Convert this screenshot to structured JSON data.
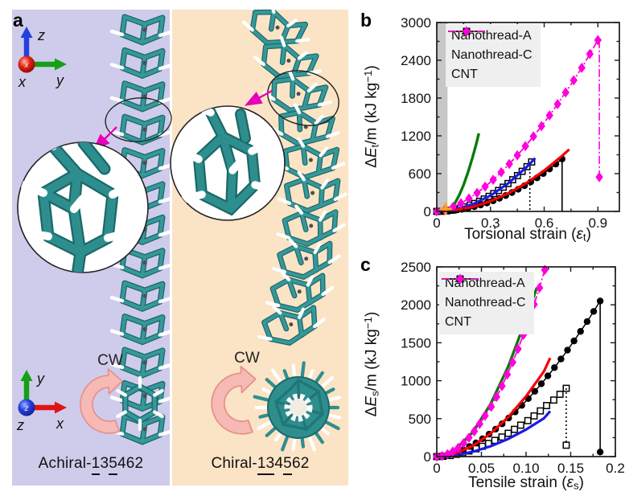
{
  "figure": {
    "panel_a": {
      "label": "a",
      "cw": "CW",
      "left_bg": "#CFCBEB",
      "right_bg": "#FBE3C5",
      "molecule_color": "#2E8E8E",
      "hydrogen_color": "#FFFFFF",
      "axes_top": {
        "up": "z",
        "right": "y",
        "out": "x"
      },
      "axes_bottom": {
        "up": "y",
        "right": "x",
        "out": "z"
      },
      "name_left": {
        "prefix": "Achiral-",
        "u1": "1",
        "m": "3",
        "u2": "5",
        "rest": "462"
      },
      "name_right": {
        "prefix": "Chiral-",
        "u1": "13",
        "m": "4",
        "u2": "5",
        "rest": "62"
      }
    },
    "panel_b": {
      "label": "b"
    },
    "panel_c": {
      "label": "c"
    }
  },
  "chart_data": [
    {
      "type": "line",
      "panel": "b",
      "xlabel_parts": {
        "pre": "Torsional strain (",
        "sym": "ε",
        "sub": "t",
        "post": ")"
      },
      "ylabel_parts": {
        "delta": "Δ",
        "E": "E",
        "sub": "t",
        "mid": "/m (kJ kg",
        "sup": "−1",
        "post": ")"
      },
      "xlim": [
        0,
        1.02
      ],
      "ylim": [
        0,
        3000
      ],
      "xticks": {
        "values": [
          0,
          0.3,
          0.6,
          0.9
        ],
        "labels": [
          "0",
          "0.3",
          "0.6",
          "0.9"
        ]
      },
      "xminor": [
        0.15,
        0.45,
        0.75
      ],
      "yticks": {
        "values": [
          0,
          600,
          1200,
          1800,
          2400,
          3000
        ],
        "labels": [
          "0",
          "600",
          "1200",
          "1800",
          "2400",
          "3000"
        ]
      },
      "yminor": [
        300,
        900,
        1500,
        2100,
        2700
      ],
      "shaded_band_x": [
        0,
        0.06
      ],
      "band_color": "#C7C7C7",
      "legend": [
        {
          "label": "Nanothread-A",
          "color": "#000000",
          "dash": "solid",
          "marker": "circle"
        },
        {
          "label": "Nanothread-C",
          "color": "#000000",
          "dash": "dot",
          "marker": "square"
        },
        {
          "label": "CNT",
          "color": "#FF00DC",
          "dash": "dashdot",
          "marker": "diamond"
        }
      ],
      "series": [
        {
          "name": "Nanothread-C",
          "color": "#000000",
          "dash": "dot",
          "marker": "square",
          "width": 1.3,
          "points": [
            [
              0,
              0
            ],
            [
              0.027,
              2
            ],
            [
              0.053,
              8
            ],
            [
              0.08,
              18
            ],
            [
              0.106,
              31
            ],
            [
              0.133,
              49
            ],
            [
              0.159,
              71
            ],
            [
              0.186,
              97
            ],
            [
              0.212,
              126
            ],
            [
              0.239,
              160
            ],
            [
              0.265,
              197
            ],
            [
              0.292,
              239
            ],
            [
              0.318,
              283
            ],
            [
              0.345,
              333
            ],
            [
              0.371,
              385
            ],
            [
              0.398,
              443
            ],
            [
              0.424,
              503
            ],
            [
              0.451,
              569
            ],
            [
              0.477,
              637
            ],
            [
              0.504,
              711
            ],
            [
              0.53,
              786
            ]
          ]
        },
        {
          "name": "Nanothread-A",
          "color": "#000000",
          "dash": "solid",
          "marker": "circle",
          "width": 1.5,
          "points": [
            [
              0,
              0
            ],
            [
              0.035,
              2
            ],
            [
              0.07,
              8
            ],
            [
              0.105,
              19
            ],
            [
              0.14,
              33
            ],
            [
              0.175,
              52
            ],
            [
              0.21,
              75
            ],
            [
              0.245,
              102
            ],
            [
              0.28,
              133
            ],
            [
              0.315,
              169
            ],
            [
              0.35,
              208
            ],
            [
              0.385,
              252
            ],
            [
              0.42,
              300
            ],
            [
              0.455,
              352
            ],
            [
              0.49,
              408
            ],
            [
              0.525,
              469
            ],
            [
              0.56,
              533
            ],
            [
              0.595,
              602
            ],
            [
              0.63,
              675
            ],
            [
              0.665,
              752
            ],
            [
              0.7,
              833
            ]
          ]
        },
        {
          "name": "fit-C-blue",
          "color": "#1A1AE6",
          "dash": "solid",
          "marker": null,
          "width": 3.2,
          "points": [
            [
              0,
              0
            ],
            [
              0.1,
              28
            ],
            [
              0.2,
              112
            ],
            [
              0.3,
              252
            ],
            [
              0.4,
              448
            ],
            [
              0.5,
              700
            ],
            [
              0.55,
              847
            ]
          ]
        },
        {
          "name": "fit-A-red",
          "color": "#F50000",
          "dash": "solid",
          "marker": null,
          "width": 3.2,
          "points": [
            [
              0.03,
              2
            ],
            [
              0.1,
              18
            ],
            [
              0.2,
              72
            ],
            [
              0.3,
              162
            ],
            [
              0.4,
              288
            ],
            [
              0.5,
              450
            ],
            [
              0.6,
              648
            ],
            [
              0.7,
              882
            ],
            [
              0.74,
              986
            ]
          ]
        },
        {
          "name": "fit-green",
          "color": "#0A7A0A",
          "dash": "solid",
          "marker": null,
          "width": 3.4,
          "points": [
            [
              0.055,
              2
            ],
            [
              0.08,
              51
            ],
            [
              0.1,
              125
            ],
            [
              0.125,
              255
            ],
            [
              0.15,
              423
            ],
            [
              0.175,
              624
            ],
            [
              0.2,
              859
            ],
            [
              0.22,
              1069
            ],
            [
              0.235,
              1240
            ]
          ]
        },
        {
          "name": "CNT",
          "color": "#FF00DC",
          "dash": "dashdot",
          "marker": "diamond",
          "width": 1.8,
          "points": [
            [
              0,
              0
            ],
            [
              0.045,
              22
            ],
            [
              0.09,
              68
            ],
            [
              0.135,
              130
            ],
            [
              0.18,
              206
            ],
            [
              0.225,
              293
            ],
            [
              0.27,
              394
            ],
            [
              0.315,
              503
            ],
            [
              0.36,
              623
            ],
            [
              0.405,
              753
            ],
            [
              0.45,
              891
            ],
            [
              0.495,
              1037
            ],
            [
              0.54,
              1192
            ],
            [
              0.585,
              1355
            ],
            [
              0.63,
              1526
            ],
            [
              0.675,
              1704
            ],
            [
              0.72,
              1890
            ],
            [
              0.765,
              2082
            ],
            [
              0.81,
              2281
            ],
            [
              0.855,
              2500
            ],
            [
              0.9,
              2720
            ]
          ]
        }
      ],
      "drops": [
        {
          "x": 0.7,
          "y_top": 830,
          "y_bottom": 0,
          "color": "#000000",
          "dash": "solid",
          "marker": null
        },
        {
          "x": 0.52,
          "y_top": 690,
          "y_bottom": 0,
          "color": "#000000",
          "dash": "dot",
          "marker": null
        },
        {
          "x": 0.908,
          "y_top": 2720,
          "y_bottom": 545,
          "color": "#FF00DC",
          "dash": "dashdot",
          "marker": "diamond"
        }
      ],
      "annotations": [
        {
          "type": "cross",
          "x": 0.05,
          "y": 40,
          "color": "#FFA021"
        }
      ]
    },
    {
      "type": "line",
      "panel": "c",
      "xlabel_parts": {
        "pre": "Tensile strain (",
        "sym": "ε",
        "sub": "s",
        "post": ")"
      },
      "ylabel_parts": {
        "delta": "Δ",
        "E": "E",
        "sub": "s",
        "mid": "/m (kJ kg",
        "sup": "−1",
        "post": ")"
      },
      "xlim": [
        0,
        0.2
      ],
      "ylim": [
        0,
        2500
      ],
      "xticks": {
        "values": [
          0,
          0.05,
          0.1,
          0.15,
          0.2
        ],
        "labels": [
          "0",
          "0.05",
          "0.10",
          "0.15",
          "0.2"
        ]
      },
      "xminor": [
        0.025,
        0.075,
        0.125,
        0.175
      ],
      "yticks": {
        "values": [
          0,
          500,
          1000,
          1500,
          2000,
          2500
        ],
        "labels": [
          "0",
          "500",
          "1000",
          "1500",
          "2000",
          "2500"
        ]
      },
      "yminor": [
        250,
        750,
        1250,
        1750,
        2250
      ],
      "shaded_band_x": null,
      "band_color": "#C7C7C7",
      "legend": [
        {
          "label": "Nanothread-A",
          "color": "#000000",
          "dash": "solid",
          "marker": "circle"
        },
        {
          "label": "Nanothread-C",
          "color": "#000000",
          "dash": "dot",
          "marker": "square"
        },
        {
          "label": "CNT",
          "color": "#FF00DC",
          "dash": "dashdot",
          "marker": "diamond"
        }
      ],
      "series": [
        {
          "name": "Nanothread-C",
          "color": "#000000",
          "dash": "dot",
          "marker": "square",
          "width": 1.3,
          "points": [
            [
              0,
              0
            ],
            [
              0.007,
              4
            ],
            [
              0.015,
              14
            ],
            [
              0.022,
              30
            ],
            [
              0.029,
              50
            ],
            [
              0.036,
              74
            ],
            [
              0.044,
              103
            ],
            [
              0.051,
              136
            ],
            [
              0.058,
              173
            ],
            [
              0.065,
              214
            ],
            [
              0.073,
              258
            ],
            [
              0.08,
              307
            ],
            [
              0.087,
              359
            ],
            [
              0.094,
              414
            ],
            [
              0.102,
              474
            ],
            [
              0.109,
              536
            ],
            [
              0.116,
              602
            ],
            [
              0.123,
              672
            ],
            [
              0.131,
              745
            ],
            [
              0.138,
              821
            ],
            [
              0.145,
              900
            ]
          ]
        },
        {
          "name": "Nanothread-A",
          "color": "#000000",
          "dash": "solid",
          "marker": "circle",
          "width": 1.5,
          "points": [
            [
              0,
              0
            ],
            [
              0.0073,
              9
            ],
            [
              0.0146,
              28
            ],
            [
              0.022,
              56
            ],
            [
              0.0293,
              91
            ],
            [
              0.0366,
              133
            ],
            [
              0.0439,
              181
            ],
            [
              0.0512,
              235
            ],
            [
              0.0586,
              296
            ],
            [
              0.0659,
              361
            ],
            [
              0.0732,
              432
            ],
            [
              0.0805,
              508
            ],
            [
              0.0878,
              589
            ],
            [
              0.0952,
              675
            ],
            [
              0.1025,
              765
            ],
            [
              0.1098,
              860
            ],
            [
              0.1171,
              960
            ],
            [
              0.1244,
              1064
            ],
            [
              0.1318,
              1173
            ],
            [
              0.1391,
              1286
            ],
            [
              0.1464,
              1403
            ],
            [
              0.1537,
              1524
            ],
            [
              0.161,
              1650
            ],
            [
              0.1684,
              1779
            ],
            [
              0.1757,
              1913
            ],
            [
              0.183,
              2050
            ]
          ]
        },
        {
          "name": "fit-C-blue",
          "color": "#1A1AE6",
          "dash": "solid",
          "marker": null,
          "width": 3.2,
          "points": [
            [
              0,
              0
            ],
            [
              0.02,
              17
            ],
            [
              0.04,
              63
            ],
            [
              0.06,
              135
            ],
            [
              0.08,
              233
            ],
            [
              0.1,
              357
            ],
            [
              0.12,
              504
            ],
            [
              0.127,
              600
            ]
          ]
        },
        {
          "name": "fit-A-red",
          "color": "#F50000",
          "dash": "solid",
          "marker": null,
          "width": 3.2,
          "points": [
            [
              0,
              0
            ],
            [
              0.02,
              37
            ],
            [
              0.04,
              139
            ],
            [
              0.06,
              301
            ],
            [
              0.08,
              520
            ],
            [
              0.1,
              795
            ],
            [
              0.12,
              1123
            ],
            [
              0.127,
              1300
            ]
          ]
        },
        {
          "name": "fit-green",
          "color": "#0A7A0A",
          "dash": "solid",
          "marker": null,
          "width": 3.4,
          "points": [
            [
              0.004,
              0
            ],
            [
              0.02,
              85
            ],
            [
              0.04,
              317
            ],
            [
              0.06,
              686
            ],
            [
              0.08,
              1185
            ],
            [
              0.1,
              1811
            ],
            [
              0.108,
              2090
            ],
            [
              0.112,
              2225
            ]
          ]
        },
        {
          "name": "CNT",
          "color": "#FF00DC",
          "dash": "dashdot",
          "marker": "diamond",
          "width": 1.8,
          "points": [
            [
              0,
              0
            ],
            [
              0.006,
              8
            ],
            [
              0.012,
              31
            ],
            [
              0.018,
              67
            ],
            [
              0.024,
              115
            ],
            [
              0.03,
              176
            ],
            [
              0.036,
              249
            ],
            [
              0.042,
              333
            ],
            [
              0.048,
              430
            ],
            [
              0.054,
              537
            ],
            [
              0.061,
              657
            ],
            [
              0.067,
              787
            ],
            [
              0.073,
              929
            ],
            [
              0.079,
              1082
            ],
            [
              0.085,
              1244
            ],
            [
              0.091,
              1419
            ],
            [
              0.097,
              1604
            ],
            [
              0.103,
              1799
            ],
            [
              0.109,
              2006
            ],
            [
              0.115,
              2223
            ],
            [
              0.121,
              2460
            ]
          ]
        }
      ],
      "drops": [
        {
          "x": 0.183,
          "y_top": 2050,
          "y_bottom": 60,
          "color": "#000000",
          "dash": "solid",
          "marker": "circle"
        },
        {
          "x": 0.145,
          "y_top": 900,
          "y_bottom": 150,
          "color": "#000000",
          "dash": "dot",
          "marker": "square"
        }
      ],
      "annotations": []
    }
  ]
}
